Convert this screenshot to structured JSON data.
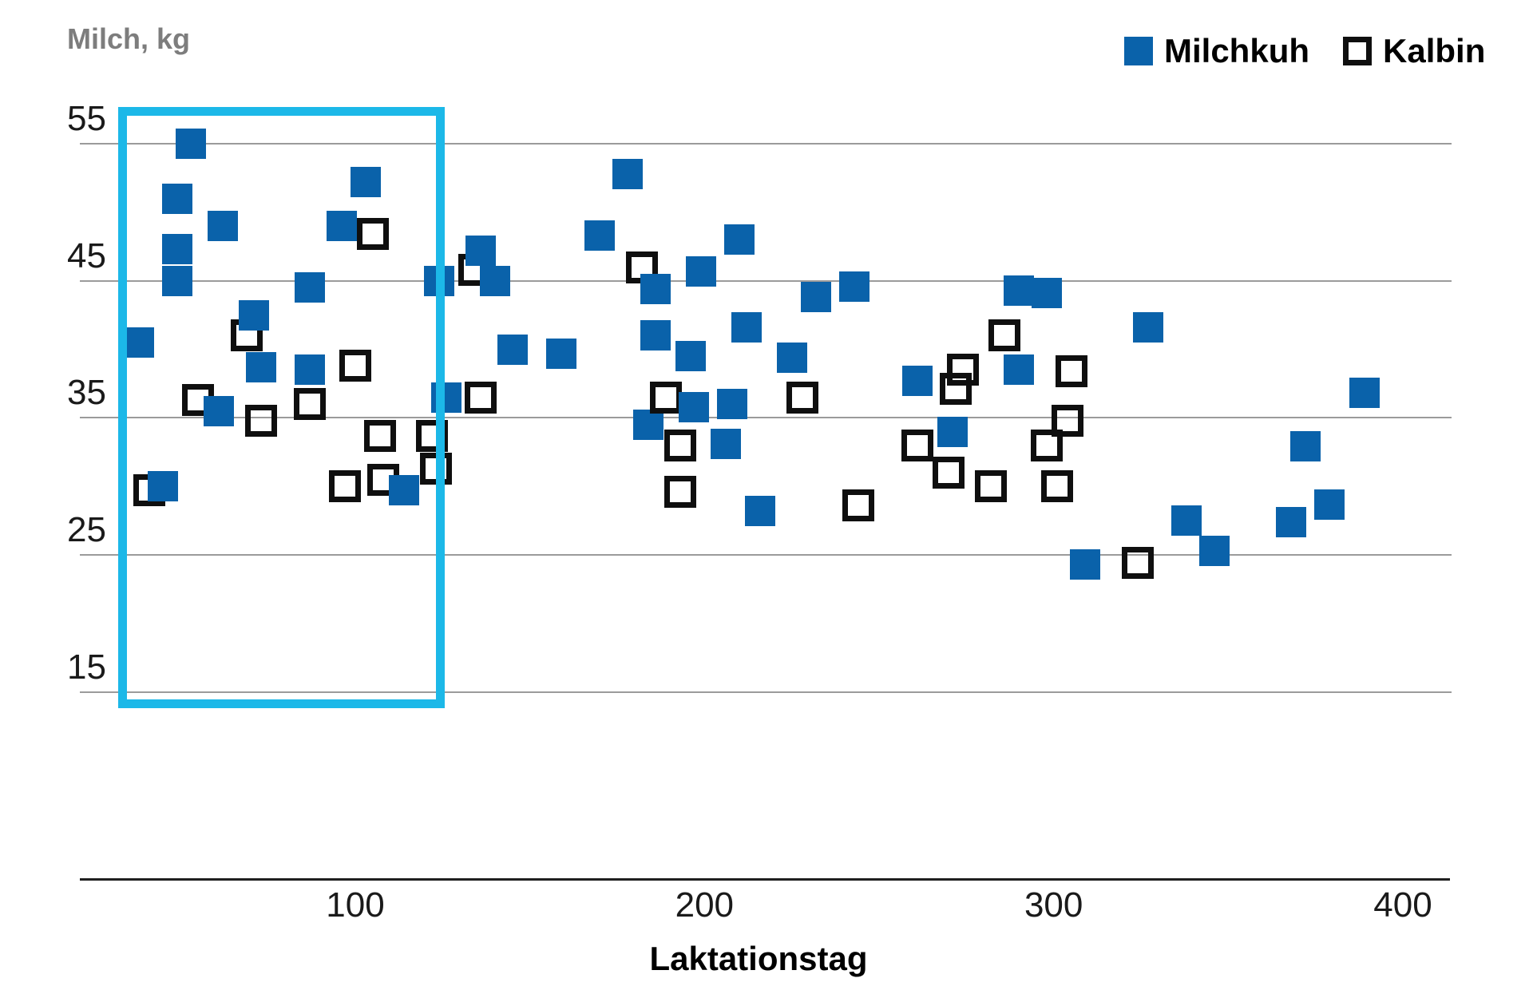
{
  "y_axis_title": "Milch, kg",
  "x_axis_title": "Laktationstag",
  "legend": {
    "milchkuh_label": "Milchkuh",
    "kalbin_label": "Kalbin"
  },
  "colors": {
    "milchkuh_fill": "#0a62aa",
    "kalbin_stroke": "#0f0f0f",
    "highlight": "#1cb8e8",
    "gridline": "#9b9b9b",
    "axis_line": "#1f1f1f",
    "tick_text": "#1a1a1a",
    "y_title_text": "#7d7d7d"
  },
  "chart_data": {
    "type": "scatter",
    "title": "",
    "xlabel": "Laktationstag",
    "ylabel": "Milch, kg",
    "xlim": [
      20,
      414
    ],
    "ylim": [
      13,
      58
    ],
    "x_ticks": [
      100,
      200,
      300,
      400
    ],
    "y_ticks": [
      55,
      45,
      35,
      25,
      15
    ],
    "grid": "horizontal",
    "legend_position": "top-right",
    "marker": "square",
    "series": [
      {
        "name": "Milchkuh",
        "style": "filled",
        "color": "#0a62aa",
        "points": [
          [
            38,
            40.5
          ],
          [
            45,
            30
          ],
          [
            49,
            51
          ],
          [
            49,
            47.3
          ],
          [
            49,
            45
          ],
          [
            53,
            55
          ],
          [
            61,
            35.5
          ],
          [
            62,
            49
          ],
          [
            71,
            42.5
          ],
          [
            73,
            38.7
          ],
          [
            87,
            44.5
          ],
          [
            87,
            38.5
          ],
          [
            96,
            49
          ],
          [
            103,
            52.2
          ],
          [
            114,
            29.7
          ],
          [
            124,
            45
          ],
          [
            126,
            36.5
          ],
          [
            136,
            47.2
          ],
          [
            140,
            45
          ],
          [
            145,
            40
          ],
          [
            159,
            39.7
          ],
          [
            170,
            48.3
          ],
          [
            178,
            52.8
          ],
          [
            184,
            34.5
          ],
          [
            186,
            44.4
          ],
          [
            186,
            41
          ],
          [
            196,
            39.5
          ],
          [
            197,
            35.8
          ],
          [
            199,
            45.7
          ],
          [
            206,
            33.1
          ],
          [
            208,
            36
          ],
          [
            210,
            48
          ],
          [
            212,
            41.6
          ],
          [
            216,
            28.2
          ],
          [
            225,
            39.4
          ],
          [
            232,
            43.8
          ],
          [
            243,
            44.6
          ],
          [
            261,
            37.7
          ],
          [
            271,
            34
          ],
          [
            290,
            44.3
          ],
          [
            290,
            38.5
          ],
          [
            298,
            44.1
          ],
          [
            309,
            24.3
          ],
          [
            327,
            41.6
          ],
          [
            338,
            27.5
          ],
          [
            346,
            25.3
          ],
          [
            368,
            27.4
          ],
          [
            372,
            32.9
          ],
          [
            379,
            28.7
          ],
          [
            389,
            36.8
          ]
        ]
      },
      {
        "name": "Kalbin",
        "style": "open",
        "color": "#0f0f0f",
        "points": [
          [
            41,
            29.7
          ],
          [
            55,
            36.3
          ],
          [
            69,
            41
          ],
          [
            73,
            34.8
          ],
          [
            87,
            36
          ],
          [
            97,
            30
          ],
          [
            100,
            38.8
          ],
          [
            105,
            48.4
          ],
          [
            107,
            33.7
          ],
          [
            108,
            30.5
          ],
          [
            122,
            33.7
          ],
          [
            123,
            31.3
          ],
          [
            134,
            45.8
          ],
          [
            136,
            36.5
          ],
          [
            182,
            46
          ],
          [
            189,
            36.5
          ],
          [
            193,
            33
          ],
          [
            193,
            29.6
          ],
          [
            228,
            36.5
          ],
          [
            244,
            28.6
          ],
          [
            261,
            33
          ],
          [
            270,
            31
          ],
          [
            272,
            37.1
          ],
          [
            274,
            38.5
          ],
          [
            282,
            30
          ],
          [
            286,
            41
          ],
          [
            298,
            33
          ],
          [
            301,
            30
          ],
          [
            304,
            34.8
          ],
          [
            305,
            38.4
          ],
          [
            324,
            24.4
          ]
        ]
      }
    ],
    "annotations": [
      {
        "type": "highlight-rect",
        "x_range": [
          32,
          125.6
        ],
        "y_range": [
          13.8,
          57.7
        ],
        "color": "#1cb8e8"
      }
    ]
  }
}
